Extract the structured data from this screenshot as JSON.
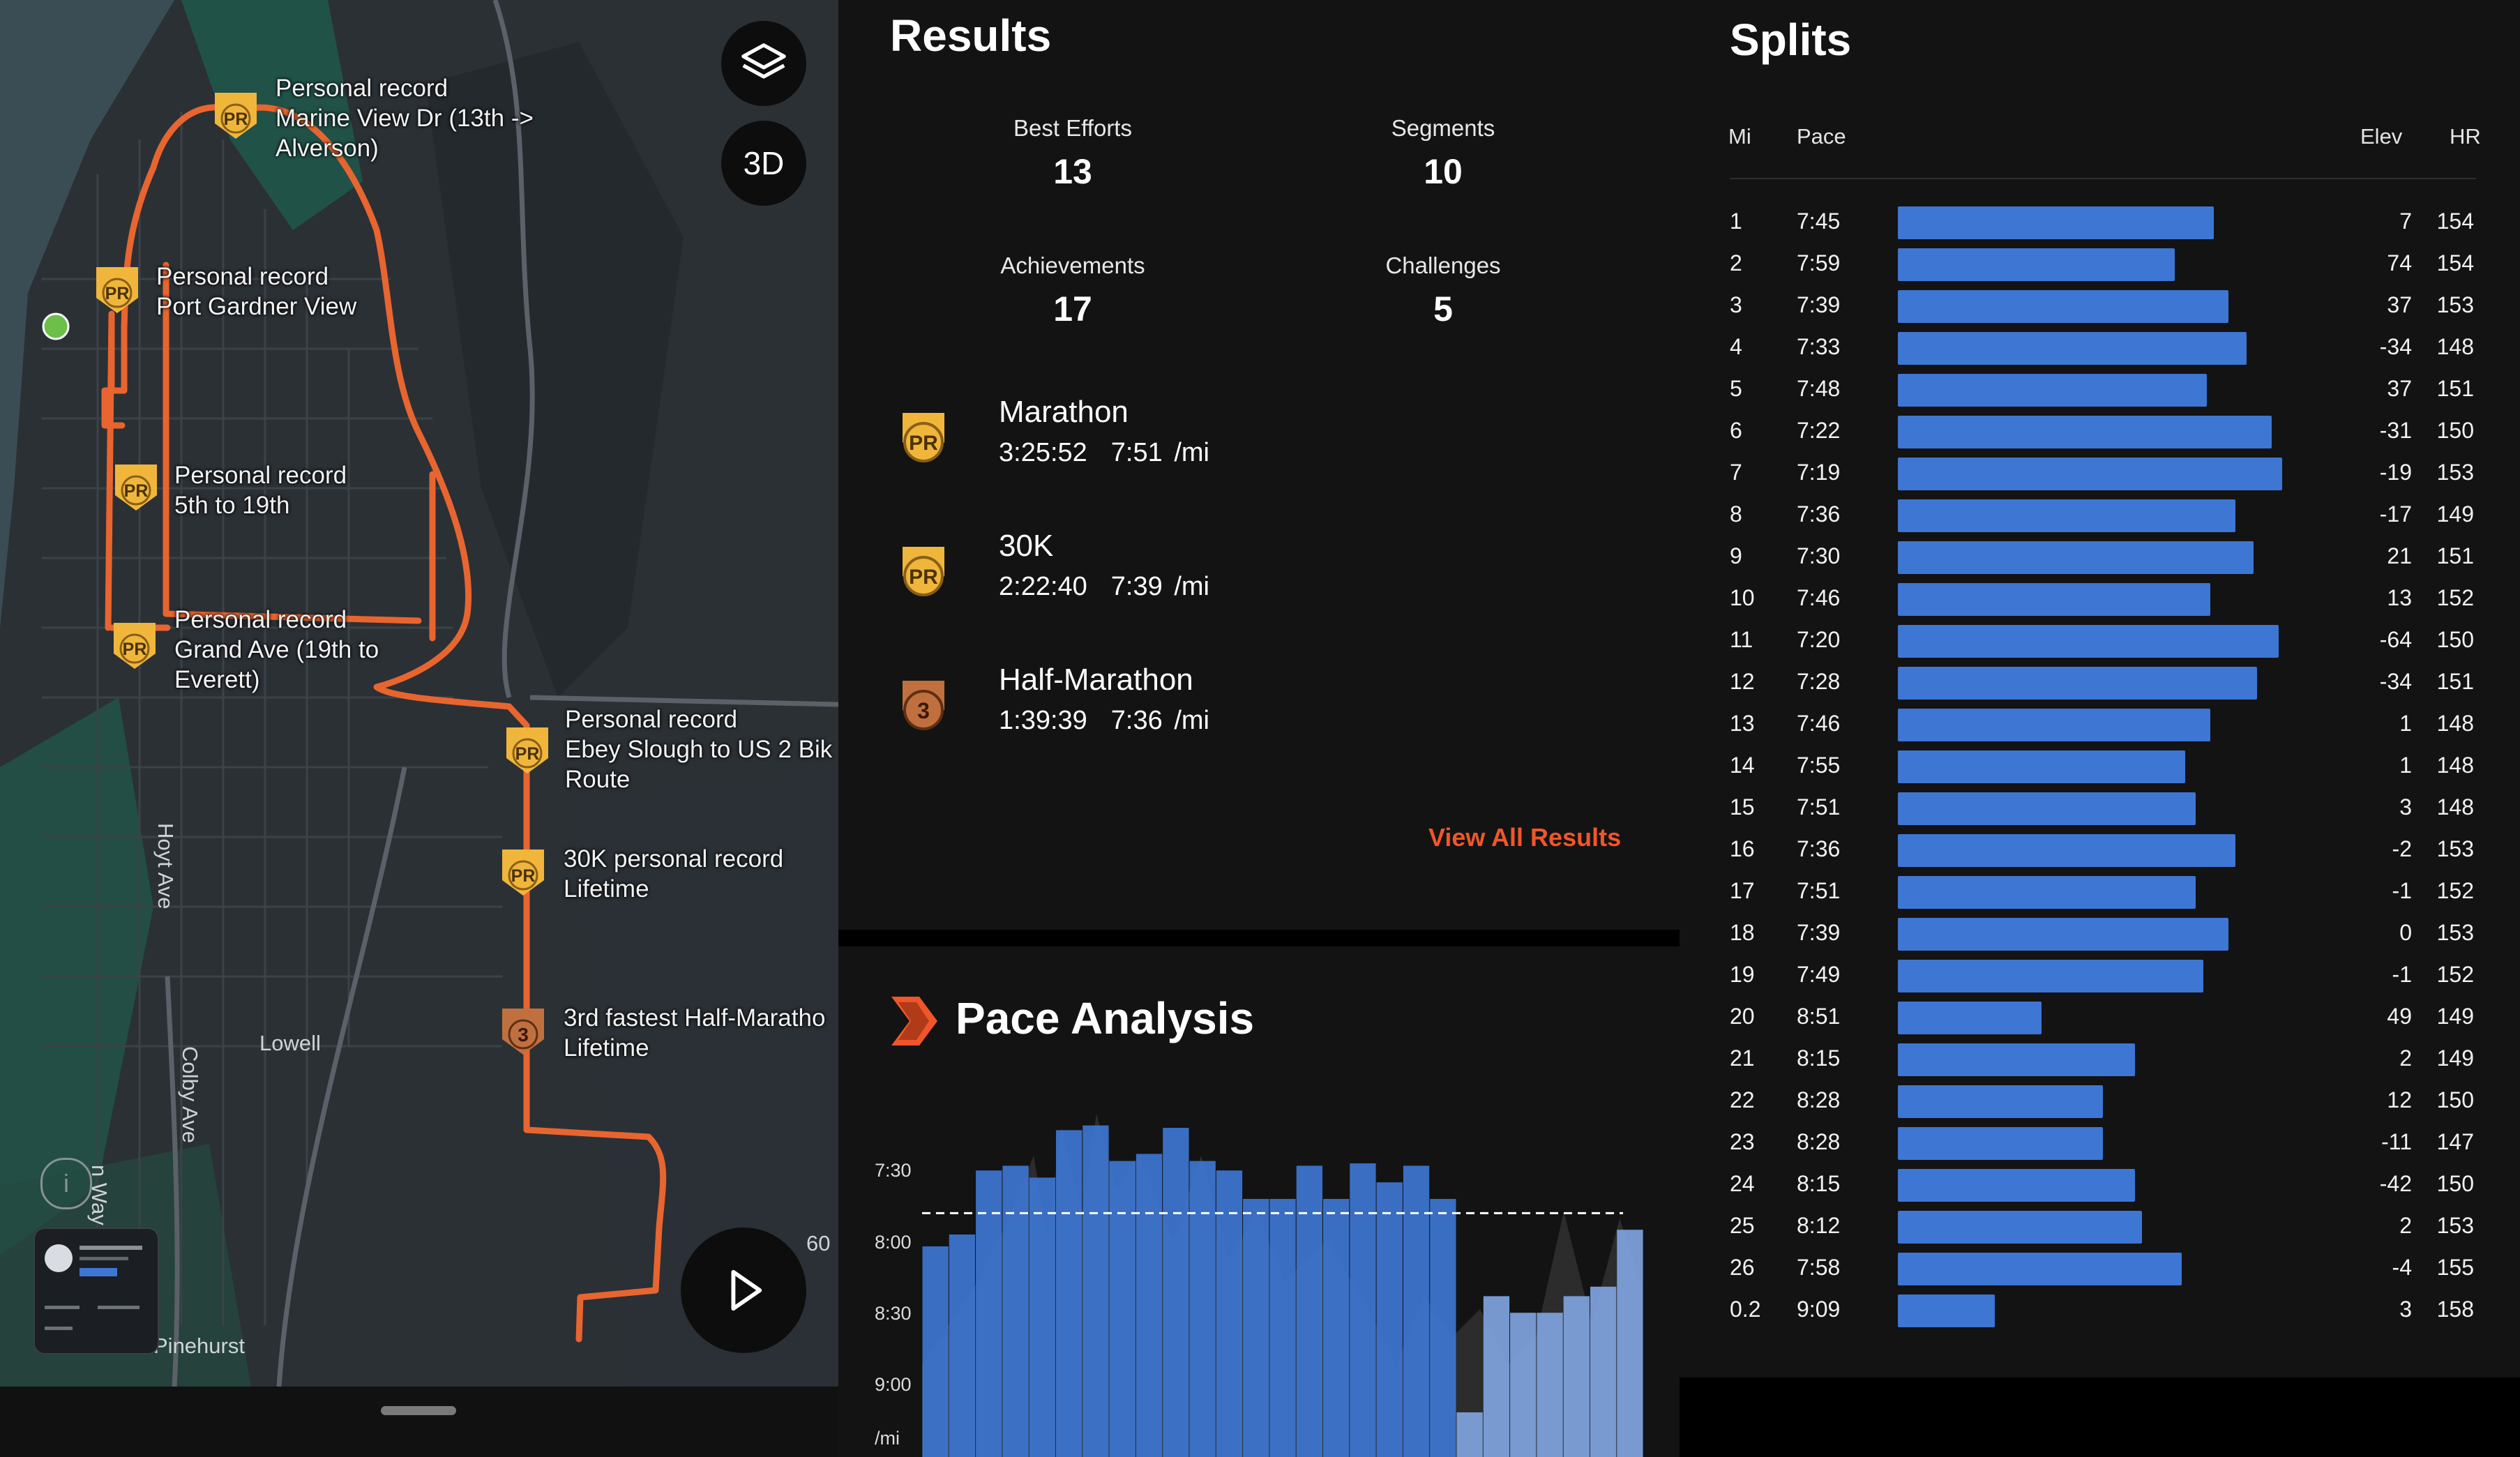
{
  "map": {
    "streets": [
      "Hoyt Ave",
      "Colby Ave",
      "Lowell",
      "Pinehurst",
      "n Way",
      "60"
    ],
    "buttons": {
      "layers_icon": "layers-icon",
      "three_d": "3D",
      "play_icon": "play-icon"
    },
    "pr_labels": [
      {
        "badge": "PR",
        "text": "Personal record\nMarine View Dr (13th ->\nAlverson)"
      },
      {
        "badge": "PR",
        "text": "Personal record\nPort Gardner View"
      },
      {
        "badge": "PR",
        "text": "Personal record\n5th to 19th"
      },
      {
        "badge": "PR",
        "text": "Personal record\nGrand Ave (19th to\nEverett)"
      },
      {
        "badge": "PR",
        "text": "Personal record\nEbey Slough to US 2 Bik\nRoute"
      },
      {
        "badge": "PR",
        "text": "30K personal record\nLifetime"
      },
      {
        "badge": "3",
        "text": "3rd fastest Half-Maratho\nLifetime"
      }
    ],
    "colors": {
      "route": "#e8652f",
      "badge": "#f0b63c",
      "bronze": "#c0703f",
      "start": "#6cc04a"
    }
  },
  "results": {
    "title": "Results",
    "stats": [
      {
        "label": "Best Efforts",
        "value": "13"
      },
      {
        "label": "Segments",
        "value": "10"
      },
      {
        "label": "Achievements",
        "value": "17"
      },
      {
        "label": "Challenges",
        "value": "5"
      }
    ],
    "efforts": [
      {
        "badge": "PR",
        "name": "Marathon",
        "time": "3:25:52",
        "pace": "7:51 /mi"
      },
      {
        "badge": "PR",
        "name": "30K",
        "time": "2:22:40",
        "pace": "7:39 /mi"
      },
      {
        "badge": "3",
        "name": "Half-Marathon",
        "time": "1:39:39",
        "pace": "7:36 /mi"
      }
    ],
    "view_all": "View All Results"
  },
  "pace": {
    "title": "Pace Analysis",
    "y_ticks": [
      "7:30",
      "8:00",
      "8:30",
      "9:00",
      "/mi"
    ]
  },
  "chart_data": {
    "type": "bar",
    "title": "Pace Analysis",
    "ylabel": "/mi",
    "y_ticks": [
      "7:30",
      "8:00",
      "8:30",
      "9:00"
    ],
    "ylim_seconds_per_mi": [
      440,
      570
    ],
    "average_pace_seconds_per_mi": 471,
    "series": [
      {
        "values_seconds_per_mi": [
          485,
          480,
          453,
          451,
          456,
          436,
          434,
          449,
          446,
          435,
          449,
          453,
          465,
          465,
          451,
          465,
          450,
          458,
          451,
          465,
          555,
          506,
          513,
          513,
          506,
          502,
          478
        ]
      }
    ]
  },
  "splits": {
    "title": "Splits",
    "headers": {
      "mi": "Mi",
      "pace": "Pace",
      "elev": "Elev",
      "hr": "HR"
    },
    "rows": [
      {
        "mi": "1",
        "pace": "7:45",
        "bar": 0.88,
        "elev": "7",
        "hr": "154"
      },
      {
        "mi": "2",
        "pace": "7:59",
        "bar": 0.77,
        "elev": "74",
        "hr": "154"
      },
      {
        "mi": "3",
        "pace": "7:39",
        "bar": 0.92,
        "elev": "37",
        "hr": "153"
      },
      {
        "mi": "4",
        "pace": "7:33",
        "bar": 0.97,
        "elev": "-34",
        "hr": "148"
      },
      {
        "mi": "5",
        "pace": "7:48",
        "bar": 0.86,
        "elev": "37",
        "hr": "151"
      },
      {
        "mi": "6",
        "pace": "7:22",
        "bar": 1.04,
        "elev": "-31",
        "hr": "150"
      },
      {
        "mi": "7",
        "pace": "7:19",
        "bar": 1.07,
        "elev": "-19",
        "hr": "153"
      },
      {
        "mi": "8",
        "pace": "7:36",
        "bar": 0.94,
        "elev": "-17",
        "hr": "149"
      },
      {
        "mi": "9",
        "pace": "7:30",
        "bar": 0.99,
        "elev": "21",
        "hr": "151"
      },
      {
        "mi": "10",
        "pace": "7:46",
        "bar": 0.87,
        "elev": "13",
        "hr": "152"
      },
      {
        "mi": "11",
        "pace": "7:20",
        "bar": 1.06,
        "elev": "-64",
        "hr": "150"
      },
      {
        "mi": "12",
        "pace": "7:28",
        "bar": 1.0,
        "elev": "-34",
        "hr": "151"
      },
      {
        "mi": "13",
        "pace": "7:46",
        "bar": 0.87,
        "elev": "1",
        "hr": "148"
      },
      {
        "mi": "14",
        "pace": "7:55",
        "bar": 0.8,
        "elev": "1",
        "hr": "148"
      },
      {
        "mi": "15",
        "pace": "7:51",
        "bar": 0.83,
        "elev": "3",
        "hr": "148"
      },
      {
        "mi": "16",
        "pace": "7:36",
        "bar": 0.94,
        "elev": "-2",
        "hr": "153"
      },
      {
        "mi": "17",
        "pace": "7:51",
        "bar": 0.83,
        "elev": "-1",
        "hr": "152"
      },
      {
        "mi": "18",
        "pace": "7:39",
        "bar": 0.92,
        "elev": "0",
        "hr": "153"
      },
      {
        "mi": "19",
        "pace": "7:49",
        "bar": 0.85,
        "elev": "-1",
        "hr": "152"
      },
      {
        "mi": "20",
        "pace": "8:51",
        "bar": 0.4,
        "elev": "49",
        "hr": "149"
      },
      {
        "mi": "21",
        "pace": "8:15",
        "bar": 0.66,
        "elev": "2",
        "hr": "149"
      },
      {
        "mi": "22",
        "pace": "8:28",
        "bar": 0.57,
        "elev": "12",
        "hr": "150"
      },
      {
        "mi": "23",
        "pace": "8:28",
        "bar": 0.57,
        "elev": "-11",
        "hr": "147"
      },
      {
        "mi": "24",
        "pace": "8:15",
        "bar": 0.66,
        "elev": "-42",
        "hr": "150"
      },
      {
        "mi": "25",
        "pace": "8:12",
        "bar": 0.68,
        "elev": "2",
        "hr": "153"
      },
      {
        "mi": "26",
        "pace": "7:58",
        "bar": 0.79,
        "elev": "-4",
        "hr": "155"
      },
      {
        "mi": "0.2",
        "pace": "9:09",
        "bar": 0.27,
        "elev": "3",
        "hr": "158"
      }
    ]
  }
}
